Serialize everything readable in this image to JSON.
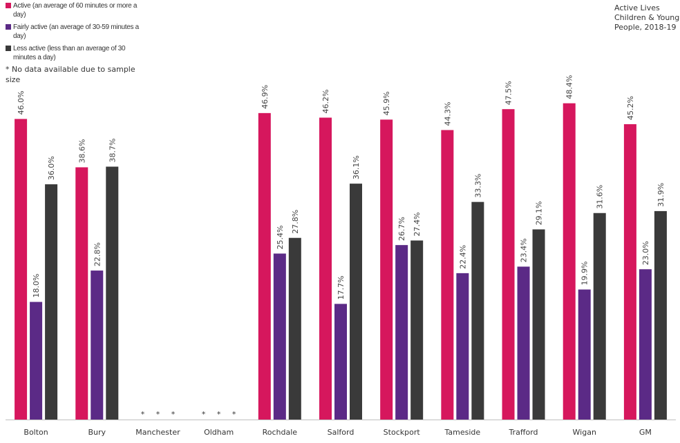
{
  "chart_data": {
    "type": "bar",
    "title": "Active Lives Children & Young People, 2018-19",
    "categories": [
      "Bolton",
      "Bury",
      "Manchester",
      "Oldham",
      "Rochdale",
      "Salford",
      "Stockport",
      "Tameside",
      "Trafford",
      "Wigan",
      "GM"
    ],
    "series": [
      {
        "name": "Active (an average of 60 minutes or more a day)",
        "color": "#d6175d",
        "values": [
          46.0,
          38.6,
          null,
          null,
          46.9,
          46.2,
          45.9,
          44.3,
          47.5,
          48.4,
          45.2
        ],
        "labels": [
          "46.0%",
          "38.6%",
          "",
          "",
          "46.9%",
          "46.2%",
          "45.9%",
          "44.3%",
          "47.5%",
          "48.4%",
          "45.2%"
        ]
      },
      {
        "name": "Fairly active (an average of 30-59 minutes a day)",
        "color": "#5b2a86",
        "values": [
          18.0,
          22.8,
          null,
          null,
          25.4,
          17.7,
          26.7,
          22.4,
          23.4,
          19.9,
          23.0
        ],
        "labels": [
          "18.0%",
          "22.8%",
          "",
          "",
          "25.4%",
          "17.7%",
          "26.7%",
          "22.4%",
          "23.4%",
          "19.9%",
          "23.0%"
        ]
      },
      {
        "name": "Less active (less than an average of 30 minutes a day)",
        "color": "#3a3a3a",
        "values": [
          36.0,
          38.7,
          null,
          null,
          27.8,
          36.1,
          27.4,
          33.3,
          29.1,
          31.6,
          31.9
        ],
        "labels": [
          "36.0%",
          "38.7%",
          "",
          "",
          "27.8%",
          "36.1%",
          "27.4%",
          "33.3%",
          "29.1%",
          "31.6%",
          "31.9%"
        ]
      }
    ],
    "missing_marker": "*",
    "missing_note": "* No data available due to sample size",
    "ylim": [
      0,
      50
    ],
    "grid": false,
    "legend_position": "top-left"
  }
}
